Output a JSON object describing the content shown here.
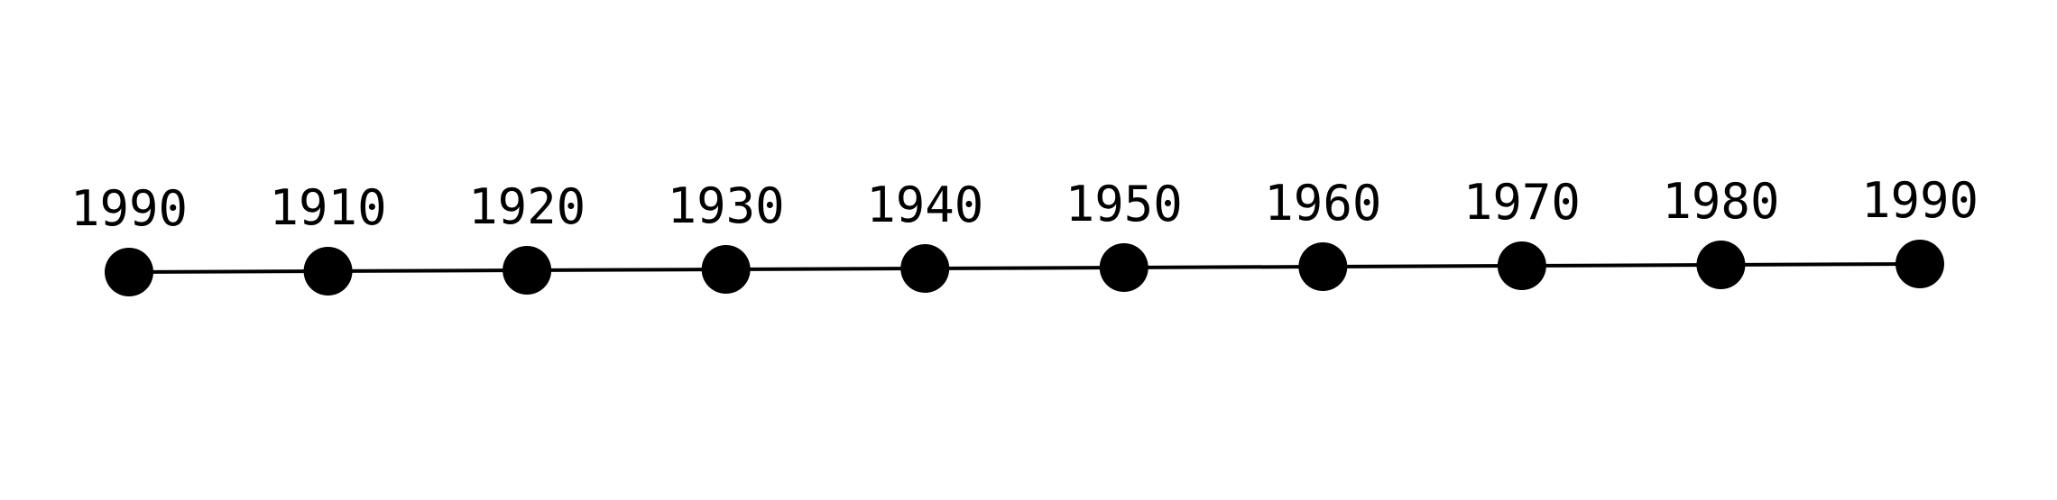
{
  "timeline": {
    "labels": [
      "1990",
      "1910",
      "1920",
      "1930",
      "1940",
      "1950",
      "1960",
      "1970",
      "1980",
      "1990"
    ],
    "colors": {
      "line": "#000000",
      "dot": "#000000",
      "text": "#000000",
      "background": "#ffffff"
    }
  }
}
